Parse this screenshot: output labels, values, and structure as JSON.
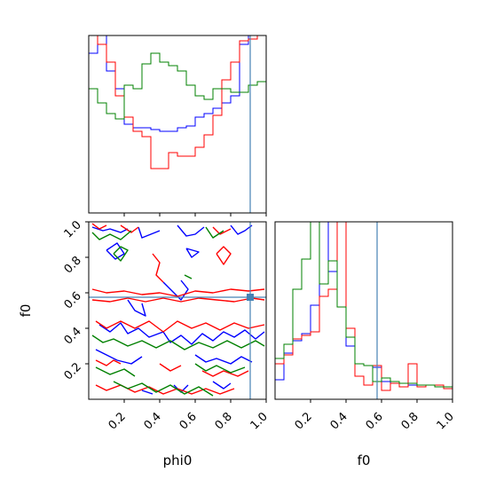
{
  "chart_data": {
    "type": "corner",
    "parameters": [
      "phi0",
      "f0"
    ],
    "truths": {
      "phi0": 0.91,
      "f0": 0.575
    },
    "series_colors": [
      "blue",
      "red",
      "green"
    ],
    "truth_color": "#4682b4",
    "axes": {
      "phi0": {
        "range": [
          0,
          1
        ],
        "tick_labels": [
          "0.2",
          "0.4",
          "0.6",
          "0.8",
          "1.0"
        ],
        "label": "phi0"
      },
      "f0": {
        "range": [
          0,
          1
        ],
        "tick_labels": [
          "0.2",
          "0.4",
          "0.6",
          "0.8",
          "1.0"
        ],
        "label": "f0"
      }
    },
    "hist_phi0": {
      "bins": [
        0.0,
        0.05,
        0.1,
        0.15,
        0.2,
        0.25,
        0.3,
        0.35,
        0.4,
        0.45,
        0.5,
        0.55,
        0.6,
        0.65,
        0.7,
        0.75,
        0.8,
        0.85,
        0.9,
        0.95,
        1.0
      ],
      "series": [
        {
          "color": "blue",
          "values": [
            0.9,
            1.05,
            0.8,
            0.7,
            0.5,
            0.48,
            0.48,
            0.47,
            0.46,
            0.46,
            0.48,
            0.49,
            0.54,
            0.56,
            0.59,
            0.62,
            0.66,
            0.95,
            1.0,
            1.05
          ]
        },
        {
          "color": "red",
          "values": [
            1.0,
            0.95,
            0.85,
            0.66,
            0.54,
            0.46,
            0.43,
            0.25,
            0.25,
            0.34,
            0.32,
            0.32,
            0.37,
            0.44,
            0.55,
            0.75,
            0.85,
            0.97,
            0.98,
            1.05
          ]
        },
        {
          "color": "green",
          "values": [
            0.7,
            0.62,
            0.56,
            0.53,
            0.72,
            0.7,
            0.84,
            0.9,
            0.85,
            0.83,
            0.8,
            0.72,
            0.66,
            0.64,
            0.7,
            0.7,
            0.68,
            0.68,
            0.72,
            0.74
          ]
        }
      ]
    },
    "hist_f0": {
      "bins": [
        0.0,
        0.05,
        0.1,
        0.15,
        0.2,
        0.25,
        0.3,
        0.35,
        0.4,
        0.45,
        0.5,
        0.55,
        0.6,
        0.65,
        0.7,
        0.75,
        0.8,
        0.85,
        0.9,
        0.95,
        1.0
      ],
      "series": [
        {
          "color": "blue",
          "values": [
            0.11,
            0.26,
            0.33,
            0.37,
            0.53,
            1.05,
            0.72,
            1.05,
            0.3,
            0.2,
            0.19,
            0.18,
            0.1,
            0.09,
            0.09,
            0.08,
            0.08,
            0.08,
            0.07,
            0.07
          ]
        },
        {
          "color": "red",
          "values": [
            0.2,
            0.25,
            0.34,
            0.36,
            0.38,
            0.58,
            0.62,
            1.05,
            0.4,
            0.13,
            0.08,
            0.19,
            0.05,
            0.09,
            0.07,
            0.2,
            0.07,
            0.08,
            0.08,
            0.06
          ]
        },
        {
          "color": "green",
          "values": [
            0.23,
            0.31,
            0.62,
            0.79,
            1.05,
            0.65,
            0.78,
            0.52,
            0.35,
            0.2,
            0.19,
            0.1,
            0.12,
            0.1,
            0.09,
            0.09,
            0.08,
            0.08,
            0.07,
            0.07
          ]
        }
      ]
    },
    "contours_2d": {
      "x": "phi0",
      "y": "f0",
      "series": [
        {
          "color": "blue",
          "lines": [
            [
              [
                0.02,
                0.97
              ],
              [
                0.08,
                0.95
              ],
              [
                0.12,
                0.96
              ],
              [
                0.18,
                0.94
              ],
              [
                0.22,
                0.96
              ]
            ],
            [
              [
                0.28,
                0.97
              ],
              [
                0.3,
                0.91
              ],
              [
                0.35,
                0.93
              ],
              [
                0.4,
                0.95
              ]
            ],
            [
              [
                0.5,
                0.98
              ],
              [
                0.55,
                0.92
              ],
              [
                0.6,
                0.93
              ],
              [
                0.65,
                0.97
              ]
            ],
            [
              [
                0.8,
                0.98
              ],
              [
                0.84,
                0.93
              ],
              [
                0.88,
                0.95
              ],
              [
                0.92,
                0.98
              ]
            ],
            [
              [
                0.1,
                0.84
              ],
              [
                0.16,
                0.88
              ],
              [
                0.2,
                0.82
              ],
              [
                0.15,
                0.79
              ],
              [
                0.1,
                0.84
              ]
            ],
            [
              [
                0.55,
                0.85
              ],
              [
                0.58,
                0.8
              ],
              [
                0.62,
                0.83
              ],
              [
                0.55,
                0.85
              ]
            ],
            [
              [
                0.42,
                0.66
              ],
              [
                0.48,
                0.6
              ],
              [
                0.52,
                0.56
              ],
              [
                0.56,
                0.62
              ],
              [
                0.52,
                0.67
              ]
            ],
            [
              [
                0.22,
                0.56
              ],
              [
                0.26,
                0.5
              ],
              [
                0.32,
                0.47
              ],
              [
                0.3,
                0.54
              ]
            ],
            [
              [
                0.06,
                0.42
              ],
              [
                0.12,
                0.38
              ],
              [
                0.18,
                0.43
              ],
              [
                0.22,
                0.37
              ],
              [
                0.28,
                0.4
              ],
              [
                0.34,
                0.35
              ],
              [
                0.42,
                0.38
              ],
              [
                0.46,
                0.32
              ],
              [
                0.52,
                0.36
              ],
              [
                0.58,
                0.31
              ],
              [
                0.64,
                0.37
              ],
              [
                0.7,
                0.33
              ],
              [
                0.76,
                0.38
              ],
              [
                0.82,
                0.35
              ],
              [
                0.88,
                0.39
              ],
              [
                0.94,
                0.34
              ],
              [
                0.99,
                0.38
              ]
            ],
            [
              [
                0.04,
                0.28
              ],
              [
                0.1,
                0.25
              ],
              [
                0.16,
                0.22
              ],
              [
                0.24,
                0.2
              ],
              [
                0.3,
                0.24
              ]
            ],
            [
              [
                0.6,
                0.25
              ],
              [
                0.66,
                0.21
              ],
              [
                0.72,
                0.23
              ],
              [
                0.8,
                0.2
              ],
              [
                0.86,
                0.24
              ],
              [
                0.92,
                0.21
              ]
            ],
            [
              [
                0.3,
                0.05
              ],
              [
                0.36,
                0.03
              ]
            ],
            [
              [
                0.48,
                0.08
              ],
              [
                0.52,
                0.04
              ],
              [
                0.56,
                0.08
              ]
            ],
            [
              [
                0.7,
                0.1
              ],
              [
                0.76,
                0.06
              ],
              [
                0.8,
                0.09
              ]
            ]
          ]
        },
        {
          "color": "red",
          "lines": [
            [
              [
                0.02,
                0.99
              ],
              [
                0.06,
                0.96
              ],
              [
                0.1,
                0.98
              ]
            ],
            [
              [
                0.18,
                0.98
              ],
              [
                0.24,
                0.94
              ],
              [
                0.28,
                0.97
              ]
            ],
            [
              [
                0.7,
                0.97
              ],
              [
                0.74,
                0.93
              ],
              [
                0.8,
                0.96
              ]
            ],
            [
              [
                0.36,
                0.82
              ],
              [
                0.4,
                0.77
              ],
              [
                0.38,
                0.7
              ],
              [
                0.42,
                0.66
              ]
            ],
            [
              [
                0.72,
                0.82
              ],
              [
                0.76,
                0.76
              ],
              [
                0.8,
                0.82
              ],
              [
                0.76,
                0.86
              ],
              [
                0.72,
                0.82
              ]
            ],
            [
              [
                0.02,
                0.62
              ],
              [
                0.1,
                0.6
              ],
              [
                0.2,
                0.61
              ],
              [
                0.3,
                0.59
              ],
              [
                0.4,
                0.6
              ],
              [
                0.5,
                0.58
              ],
              [
                0.6,
                0.61
              ],
              [
                0.7,
                0.6
              ],
              [
                0.8,
                0.62
              ],
              [
                0.9,
                0.61
              ],
              [
                0.99,
                0.62
              ]
            ],
            [
              [
                0.02,
                0.56
              ],
              [
                0.12,
                0.55
              ],
              [
                0.22,
                0.57
              ],
              [
                0.32,
                0.55
              ],
              [
                0.42,
                0.57
              ],
              [
                0.52,
                0.55
              ],
              [
                0.62,
                0.57
              ],
              [
                0.72,
                0.56
              ],
              [
                0.82,
                0.55
              ],
              [
                0.92,
                0.57
              ],
              [
                0.99,
                0.56
              ]
            ],
            [
              [
                0.04,
                0.44
              ],
              [
                0.1,
                0.4
              ],
              [
                0.18,
                0.44
              ],
              [
                0.26,
                0.4
              ],
              [
                0.34,
                0.44
              ],
              [
                0.42,
                0.38
              ],
              [
                0.5,
                0.44
              ],
              [
                0.58,
                0.4
              ],
              [
                0.66,
                0.43
              ],
              [
                0.74,
                0.39
              ],
              [
                0.82,
                0.43
              ],
              [
                0.9,
                0.4
              ],
              [
                0.99,
                0.42
              ]
            ],
            [
              [
                0.04,
                0.22
              ],
              [
                0.1,
                0.19
              ],
              [
                0.14,
                0.22
              ],
              [
                0.18,
                0.2
              ]
            ],
            [
              [
                0.4,
                0.2
              ],
              [
                0.46,
                0.16
              ],
              [
                0.52,
                0.19
              ]
            ],
            [
              [
                0.64,
                0.16
              ],
              [
                0.7,
                0.13
              ],
              [
                0.76,
                0.16
              ],
              [
                0.84,
                0.13
              ],
              [
                0.9,
                0.16
              ]
            ],
            [
              [
                0.04,
                0.08
              ],
              [
                0.1,
                0.05
              ],
              [
                0.18,
                0.08
              ],
              [
                0.26,
                0.04
              ],
              [
                0.34,
                0.07
              ],
              [
                0.42,
                0.03
              ],
              [
                0.5,
                0.06
              ],
              [
                0.58,
                0.03
              ],
              [
                0.66,
                0.06
              ],
              [
                0.74,
                0.03
              ],
              [
                0.82,
                0.06
              ]
            ]
          ]
        },
        {
          "color": "green",
          "lines": [
            [
              [
                0.02,
                0.94
              ],
              [
                0.06,
                0.9
              ],
              [
                0.12,
                0.93
              ],
              [
                0.18,
                0.9
              ],
              [
                0.24,
                0.95
              ]
            ],
            [
              [
                0.66,
                0.97
              ],
              [
                0.7,
                0.91
              ],
              [
                0.76,
                0.95
              ]
            ],
            [
              [
                0.14,
                0.82
              ],
              [
                0.18,
                0.78
              ],
              [
                0.22,
                0.84
              ],
              [
                0.18,
                0.86
              ],
              [
                0.14,
                0.82
              ]
            ],
            [
              [
                0.54,
                0.7
              ],
              [
                0.58,
                0.68
              ]
            ],
            [
              [
                0.02,
                0.36
              ],
              [
                0.08,
                0.32
              ],
              [
                0.14,
                0.34
              ],
              [
                0.22,
                0.3
              ],
              [
                0.3,
                0.33
              ],
              [
                0.38,
                0.29
              ],
              [
                0.46,
                0.33
              ],
              [
                0.54,
                0.28
              ],
              [
                0.62,
                0.32
              ],
              [
                0.7,
                0.29
              ],
              [
                0.78,
                0.33
              ],
              [
                0.86,
                0.29
              ],
              [
                0.94,
                0.33
              ],
              [
                0.99,
                0.3
              ]
            ],
            [
              [
                0.04,
                0.18
              ],
              [
                0.12,
                0.14
              ],
              [
                0.2,
                0.17
              ],
              [
                0.26,
                0.13
              ]
            ],
            [
              [
                0.6,
                0.2
              ],
              [
                0.66,
                0.16
              ],
              [
                0.72,
                0.19
              ],
              [
                0.8,
                0.15
              ],
              [
                0.88,
                0.18
              ]
            ],
            [
              [
                0.14,
                0.1
              ],
              [
                0.22,
                0.06
              ],
              [
                0.3,
                0.09
              ],
              [
                0.38,
                0.04
              ],
              [
                0.46,
                0.08
              ],
              [
                0.54,
                0.03
              ],
              [
                0.62,
                0.07
              ],
              [
                0.7,
                0.02
              ]
            ]
          ]
        }
      ]
    }
  }
}
